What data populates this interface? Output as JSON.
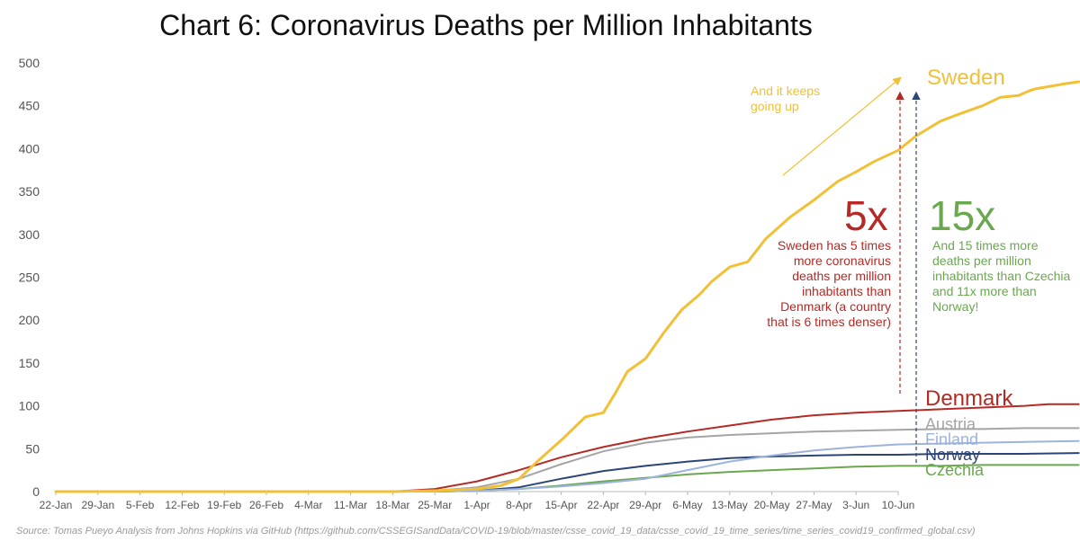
{
  "colors": {
    "sweden": "#f2c037",
    "denmark": "#b52a24",
    "austria": "#a5a5a5",
    "finland": "#9db3dc",
    "norway": "#2c4576",
    "czechia": "#6aa84f"
  },
  "chart_data": {
    "type": "line",
    "title": "Chart 6: Coronavirus Deaths per Million Inhabitants",
    "xlabel": "",
    "ylabel": "",
    "ylim": [
      0,
      500
    ],
    "yticks": [
      0,
      50,
      100,
      150,
      200,
      250,
      300,
      350,
      400,
      450,
      500
    ],
    "x_categories": [
      "22-Jan",
      "29-Jan",
      "5-Feb",
      "12-Feb",
      "19-Feb",
      "26-Feb",
      "4-Mar",
      "11-Mar",
      "18-Mar",
      "25-Mar",
      "1-Apr",
      "8-Apr",
      "15-Apr",
      "22-Apr",
      "29-Apr",
      "6-May",
      "13-May",
      "20-May",
      "27-May",
      "3-Jun",
      "10-Jun"
    ],
    "grid": false,
    "legend": "right, labels at line ends",
    "series": [
      {
        "name": "Sweden",
        "color_key": "sweden",
        "x": [
          0,
          56,
          63,
          70,
          74,
          77,
          80,
          84,
          88,
          91,
          93,
          95,
          98,
          101,
          104,
          107,
          109,
          112,
          115,
          118,
          122,
          126,
          130,
          133,
          136,
          140,
          143,
          147,
          150,
          154,
          157,
          160,
          162,
          163,
          168,
          170
        ],
        "y": [
          0,
          0,
          1,
          3,
          7,
          15,
          35,
          60,
          87,
          92,
          115,
          140,
          155,
          185,
          212,
          230,
          245,
          262,
          268,
          295,
          320,
          340,
          362,
          373,
          385,
          398,
          415,
          432,
          440,
          450,
          460,
          462,
          468,
          470,
          476,
          478
        ]
      },
      {
        "name": "Denmark",
        "color_key": "denmark",
        "x": [
          0,
          56,
          63,
          70,
          77,
          84,
          91,
          98,
          105,
          112,
          119,
          126,
          133,
          140,
          147,
          154,
          161,
          165,
          170
        ],
        "y": [
          0,
          0,
          3,
          12,
          25,
          40,
          52,
          62,
          70,
          77,
          84,
          89,
          92,
          94,
          96,
          98,
          100,
          102,
          102
        ]
      },
      {
        "name": "Austria",
        "color_key": "austria",
        "x": [
          0,
          56,
          63,
          70,
          77,
          84,
          91,
          98,
          105,
          112,
          119,
          126,
          133,
          140,
          147,
          154,
          161,
          170
        ],
        "y": [
          0,
          0,
          1,
          5,
          15,
          32,
          47,
          57,
          63,
          66,
          68,
          70,
          71,
          72,
          73,
          73,
          74,
          74
        ]
      },
      {
        "name": "Finland",
        "color_key": "finland",
        "x": [
          0,
          56,
          63,
          70,
          77,
          84,
          91,
          98,
          105,
          112,
          119,
          126,
          133,
          140,
          147,
          154,
          161,
          170
        ],
        "y": [
          0,
          0,
          0,
          1,
          3,
          6,
          10,
          15,
          25,
          35,
          42,
          48,
          52,
          55,
          56,
          57,
          58,
          59
        ]
      },
      {
        "name": "Norway",
        "color_key": "norway",
        "x": [
          0,
          56,
          63,
          70,
          77,
          84,
          91,
          98,
          105,
          112,
          119,
          126,
          133,
          140,
          147,
          154,
          161,
          170
        ],
        "y": [
          0,
          0,
          0,
          1,
          5,
          15,
          24,
          30,
          35,
          39,
          41,
          42,
          43,
          43,
          44,
          44,
          44,
          45
        ]
      },
      {
        "name": "Czechia",
        "color_key": "czechia",
        "x": [
          0,
          56,
          63,
          70,
          77,
          84,
          91,
          98,
          105,
          112,
          119,
          126,
          133,
          140,
          147,
          154,
          161,
          170
        ],
        "y": [
          0,
          0,
          0,
          1,
          3,
          7,
          12,
          16,
          20,
          23,
          25,
          27,
          29,
          30,
          30,
          31,
          31,
          31
        ]
      }
    ]
  },
  "labels": {
    "sweden": "Sweden",
    "denmark": "Denmark",
    "austria": "Austria",
    "finland": "Finland",
    "norway": "Norway",
    "czechia": "Czechia"
  },
  "annotations": {
    "keeps_going_line1": "And it keeps",
    "keeps_going_line2": "going up",
    "five_x": "5x",
    "five_x_text": [
      "Sweden has 5 times",
      "more coronavirus",
      "deaths per million",
      "inhabitants than",
      "Denmark (a country",
      "that is 6 times denser)"
    ],
    "fifteen_x": "15x",
    "fifteen_x_text": [
      "And 15 times more",
      "deaths per million",
      "inhabitants than Czechia",
      "and 11x more than",
      "Norway!"
    ]
  },
  "source": "Source: Tomas Pueyo Analysis from Johns Hopkins via GitHub (https://github.com/CSSEGISandData/COVID-19/blob/master/csse_covid_19_data/csse_covid_19_time_series/time_series_covid19_confirmed_global.csv)"
}
